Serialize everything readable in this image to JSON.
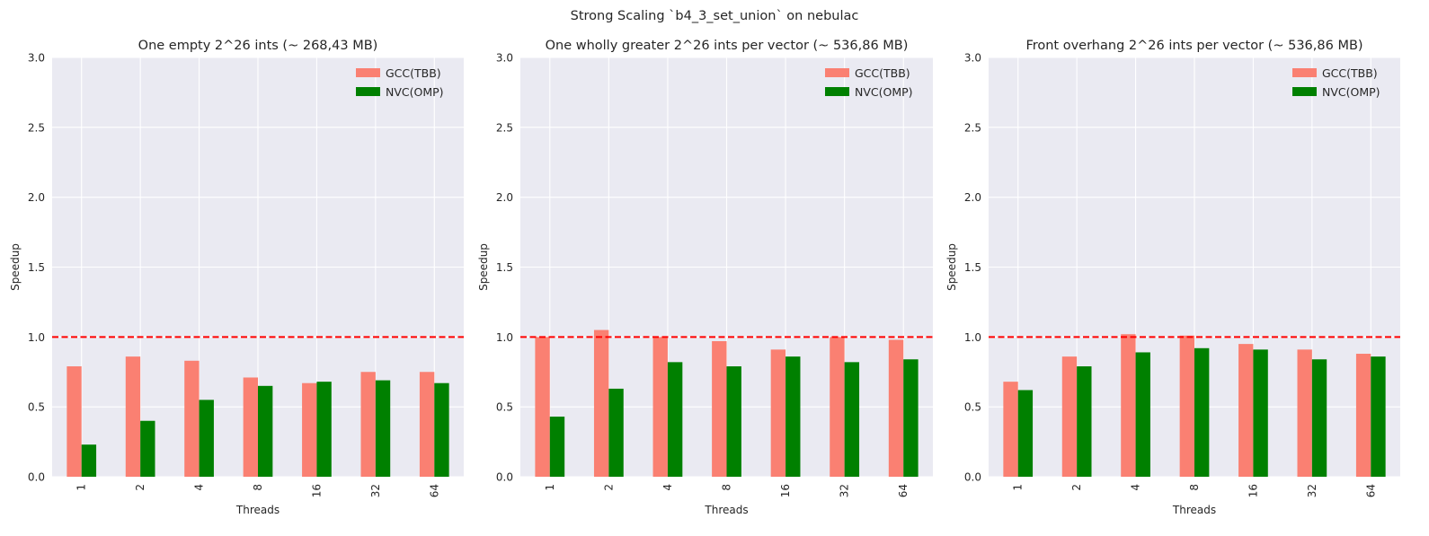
{
  "figure": {
    "suptitle": "Strong Scaling `b4_3_set_union` on nebulac"
  },
  "colors": {
    "gcc": "#fa8072",
    "nvc": "#008000",
    "baseline": "#ff0000",
    "axes_bg": "#eaeaf2",
    "grid": "#ffffff"
  },
  "chart_data": [
    {
      "type": "bar",
      "title": "One empty 2^26 ints (~ 268,43 MB)",
      "xlabel": "Threads",
      "ylabel": "Speedup",
      "categories": [
        "1",
        "2",
        "4",
        "8",
        "16",
        "32",
        "64"
      ],
      "ylim": [
        0,
        3.0
      ],
      "yticks": [
        "0.0",
        "0.5",
        "1.0",
        "1.5",
        "2.0",
        "2.5",
        "3.0"
      ],
      "grid": true,
      "legend_position": "top-right",
      "reference_line": 1.0,
      "series": [
        {
          "name": "GCC(TBB)",
          "values": [
            0.79,
            0.86,
            0.83,
            0.71,
            0.67,
            0.75,
            0.75
          ]
        },
        {
          "name": "NVC(OMP)",
          "values": [
            0.23,
            0.4,
            0.55,
            0.65,
            0.68,
            0.69,
            0.67
          ]
        }
      ]
    },
    {
      "type": "bar",
      "title": "One wholly greater 2^26 ints per vector (~ 536,86 MB)",
      "xlabel": "Threads",
      "ylabel": "Speedup",
      "categories": [
        "1",
        "2",
        "4",
        "8",
        "16",
        "32",
        "64"
      ],
      "ylim": [
        0,
        3.0
      ],
      "yticks": [
        "0.0",
        "0.5",
        "1.0",
        "1.5",
        "2.0",
        "2.5",
        "3.0"
      ],
      "grid": true,
      "legend_position": "top-right",
      "reference_line": 1.0,
      "series": [
        {
          "name": "GCC(TBB)",
          "values": [
            1.0,
            1.05,
            1.0,
            0.97,
            0.91,
            1.0,
            0.98
          ]
        },
        {
          "name": "NVC(OMP)",
          "values": [
            0.43,
            0.63,
            0.82,
            0.79,
            0.86,
            0.82,
            0.84
          ]
        }
      ]
    },
    {
      "type": "bar",
      "title": "Front overhang 2^26 ints per vector (~ 536,86 MB)",
      "xlabel": "Threads",
      "ylabel": "Speedup",
      "categories": [
        "1",
        "2",
        "4",
        "8",
        "16",
        "32",
        "64"
      ],
      "ylim": [
        0,
        3.0
      ],
      "yticks": [
        "0.0",
        "0.5",
        "1.0",
        "1.5",
        "2.0",
        "2.5",
        "3.0"
      ],
      "grid": true,
      "legend_position": "top-right",
      "reference_line": 1.0,
      "series": [
        {
          "name": "GCC(TBB)",
          "values": [
            0.68,
            0.86,
            1.02,
            1.01,
            0.95,
            0.91,
            0.88
          ]
        },
        {
          "name": "NVC(OMP)",
          "values": [
            0.62,
            0.79,
            0.89,
            0.92,
            0.91,
            0.84,
            0.86
          ]
        }
      ]
    }
  ]
}
